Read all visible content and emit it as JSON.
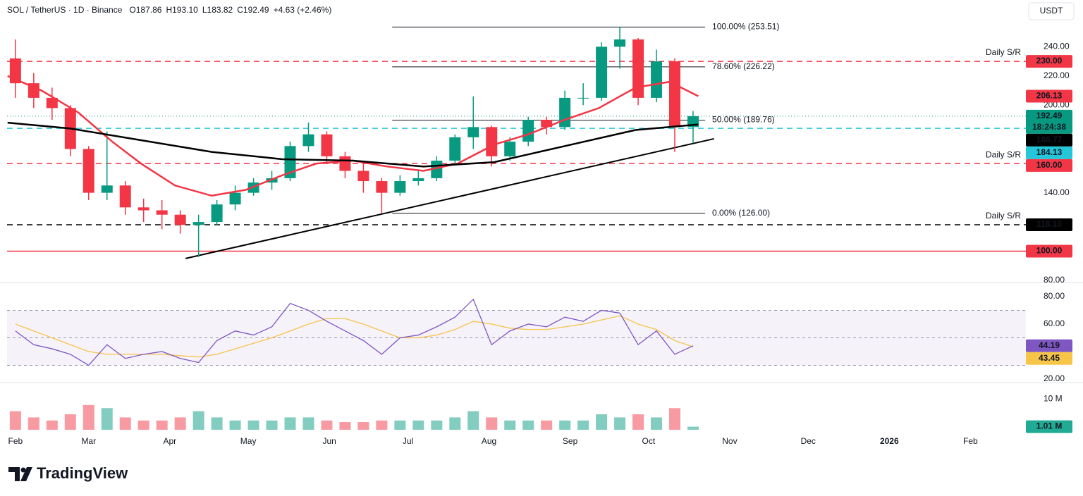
{
  "header": {
    "symbol": "SOL / TetherUS · 1D · Binance",
    "ohlc": [
      {
        "label": "O",
        "value": "187.86"
      },
      {
        "label": "H",
        "value": "193.10"
      },
      {
        "label": "L",
        "value": "183.82"
      },
      {
        "label": "C",
        "value": "192.49"
      }
    ],
    "change": "+4.63 (+2.46%)",
    "currency": "USDT"
  },
  "brand": "TradingView",
  "chart_data": [
    {
      "type": "candlestick",
      "up_color": "#089981",
      "down_color": "#f23645",
      "x": [
        0,
        7,
        14,
        21,
        28,
        35,
        42,
        49,
        56,
        63,
        70,
        77,
        84,
        91,
        98,
        105,
        112,
        119,
        126,
        133,
        140,
        147,
        154,
        161,
        168,
        175,
        182,
        189,
        196,
        203,
        210,
        217,
        224,
        231,
        238,
        245,
        252,
        259
      ],
      "open": [
        232,
        215,
        205,
        198,
        170,
        140,
        145,
        130,
        128,
        125,
        118,
        120,
        132,
        140,
        147,
        150,
        172,
        180,
        165,
        155,
        148,
        140,
        148,
        150,
        162,
        178,
        185,
        165,
        175,
        190,
        185,
        205,
        205,
        240,
        245,
        205,
        230,
        185
      ],
      "high": [
        245,
        222,
        212,
        200,
        172,
        182,
        148,
        136,
        135,
        128,
        125,
        135,
        145,
        150,
        155,
        175,
        188,
        182,
        168,
        160,
        150,
        152,
        156,
        165,
        180,
        206,
        186,
        178,
        192,
        192,
        210,
        215,
        243,
        253.51,
        246,
        238,
        232,
        196
      ],
      "low": [
        205,
        198,
        190,
        165,
        135,
        135,
        125,
        120,
        115,
        112,
        96,
        118,
        128,
        138,
        142,
        148,
        168,
        160,
        150,
        140,
        126,
        138,
        145,
        148,
        160,
        170,
        158,
        162,
        172,
        180,
        183,
        200,
        203,
        225,
        200,
        202,
        168,
        174
      ],
      "close": [
        215,
        205,
        198,
        170,
        140,
        145,
        130,
        128,
        125,
        118,
        120,
        132,
        140,
        147,
        150,
        172,
        180,
        165,
        155,
        148,
        140,
        148,
        150,
        162,
        178,
        185,
        165,
        175,
        190,
        185,
        205,
        205,
        240,
        245,
        205,
        230,
        185,
        192.49
      ],
      "xlim": [
        -3.2,
        386.2
      ],
      "xticks": [
        {
          "value": 0,
          "label": "Feb"
        },
        {
          "value": 28,
          "label": "Mar"
        },
        {
          "value": 59,
          "label": "Apr"
        },
        {
          "value": 89,
          "label": "May"
        },
        {
          "value": 120,
          "label": "Jun"
        },
        {
          "value": 150,
          "label": "Jul"
        },
        {
          "value": 181,
          "label": "Aug"
        },
        {
          "value": 212,
          "label": "Sep"
        },
        {
          "value": 242,
          "label": "Oct"
        },
        {
          "value": 273,
          "label": "Nov"
        },
        {
          "value": 303,
          "label": "Dec"
        },
        {
          "value": 334,
          "label": "2026"
        },
        {
          "value": 365,
          "label": "Feb"
        }
      ],
      "ylim": [
        80,
        272
      ],
      "yticks": [
        {
          "value": 80,
          "label": "80.00"
        },
        {
          "value": 140,
          "label": "140.00"
        },
        {
          "value": 200,
          "label": "200.00"
        },
        {
          "value": 220,
          "label": "220.00"
        },
        {
          "value": 240,
          "label": "240.00"
        }
      ],
      "overlays": [
        {
          "color": "#f23645",
          "x": [
            -3,
            10,
            24,
            37,
            48,
            61,
            75,
            88,
            102,
            115,
            129,
            142,
            156,
            169,
            183,
            196,
            210,
            223,
            237,
            250,
            261
          ],
          "values": [
            220,
            210,
            195,
            175,
            160,
            145,
            138,
            142,
            152,
            160,
            162,
            158,
            155,
            160,
            173,
            180,
            190,
            198,
            212,
            216,
            206.13
          ],
          "last_label": "206.13"
        },
        {
          "color": "#000000",
          "x": [
            -3,
            21,
            48,
            75,
            102,
            129,
            156,
            183,
            210,
            237,
            261
          ],
          "values": [
            188,
            184,
            176,
            168,
            163,
            162,
            158,
            161,
            172,
            183,
            186.77
          ],
          "last_label": "186.77"
        }
      ],
      "trendline": {
        "color": "#000000",
        "x": [
          65,
          267
        ],
        "values": [
          95,
          177
        ]
      },
      "fib_range": [
        144,
        263.6
      ],
      "fib_levels": [
        {
          "value": 253.51,
          "label": "100.00% (253.51)"
        },
        {
          "value": 226.22,
          "label": "78.60% (226.22)"
        },
        {
          "value": 189.76,
          "label": "50.00% (189.76)"
        },
        {
          "value": 126,
          "label": "0.00% (126.00)"
        }
      ],
      "levels": [
        {
          "value": 230,
          "label": "230.00",
          "note": "Daily S/R",
          "color": "#f23645",
          "style": "dashed"
        },
        {
          "value": 184.13,
          "label": "184.13",
          "color": "#26c6da",
          "style": "dashed"
        },
        {
          "value": 160,
          "label": "160.00",
          "note": "Daily S/R",
          "color": "#f23645",
          "style": "dashed"
        },
        {
          "value": 118.1,
          "label": "118.10",
          "note": "Daily S/R",
          "color": "#000000",
          "style": "dashed"
        },
        {
          "value": 100,
          "label": "100.00",
          "color": "#f23645",
          "style": "solid"
        }
      ],
      "current": {
        "value": 192.49,
        "label": "192.49",
        "timer": "18:24:38",
        "color": "#089981"
      }
    },
    {
      "type": "line",
      "x": [
        0,
        7,
        14,
        21,
        28,
        35,
        42,
        49,
        56,
        63,
        70,
        77,
        84,
        91,
        98,
        105,
        112,
        119,
        126,
        133,
        140,
        147,
        154,
        161,
        168,
        175,
        182,
        189,
        196,
        203,
        210,
        217,
        224,
        231,
        238,
        245,
        252,
        259
      ],
      "ylim": [
        16.4,
        89.2
      ],
      "yticks": [
        {
          "value": 20,
          "label": "20.00"
        },
        {
          "value": 60,
          "label": "60.00"
        },
        {
          "value": 80,
          "label": "80.00"
        }
      ],
      "band": [
        30,
        70
      ],
      "midline": 50,
      "series": [
        {
          "color": "#7e57c2",
          "values": [
            55,
            45,
            42,
            38,
            30,
            45,
            35,
            38,
            40,
            35,
            32,
            48,
            55,
            52,
            58,
            75,
            70,
            62,
            55,
            48,
            38,
            50,
            52,
            58,
            65,
            78,
            45,
            55,
            60,
            58,
            65,
            62,
            70,
            68,
            45,
            55,
            38,
            44.19
          ],
          "last_label": "44.19"
        },
        {
          "color": "#f7c548",
          "values": [
            60,
            55,
            50,
            45,
            40,
            38,
            38,
            38,
            38,
            37,
            36,
            38,
            42,
            46,
            50,
            55,
            60,
            64,
            64,
            60,
            55,
            50,
            50,
            52,
            56,
            62,
            60,
            57,
            56,
            56,
            58,
            60,
            63,
            66,
            60,
            56,
            48,
            43.45
          ],
          "last_label": "43.45"
        }
      ]
    },
    {
      "type": "bar",
      "x": [
        0,
        7,
        14,
        21,
        28,
        35,
        42,
        49,
        56,
        63,
        70,
        77,
        84,
        91,
        98,
        105,
        112,
        119,
        126,
        133,
        140,
        147,
        154,
        161,
        168,
        175,
        182,
        189,
        196,
        203,
        210,
        217,
        224,
        231,
        238,
        245,
        252,
        259
      ],
      "values": [
        6,
        4,
        3,
        5,
        8,
        7,
        4,
        3,
        3,
        4,
        6,
        4,
        3,
        3,
        3,
        4,
        4,
        3,
        2.5,
        2.5,
        3,
        3,
        3,
        3,
        4,
        6,
        4,
        3,
        3,
        3,
        3,
        3,
        5,
        4,
        5,
        4,
        7,
        1.01
      ],
      "ylim": [
        0,
        14.8
      ],
      "yticks": [
        {
          "value": 10,
          "label": "10 M"
        }
      ],
      "last_label": "1.01 M",
      "color": "#22ab94"
    }
  ]
}
